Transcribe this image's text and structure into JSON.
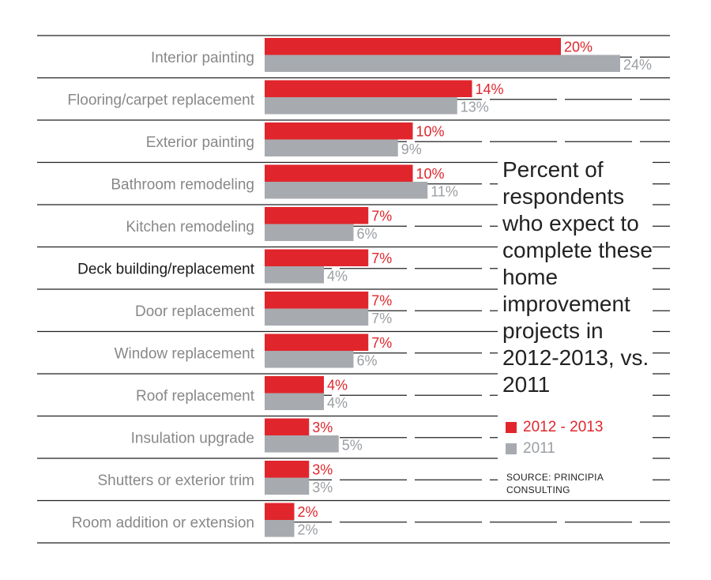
{
  "chart_data": {
    "type": "bar",
    "orientation": "horizontal",
    "title": "Percent of respondents who expect to complete these home improvement projects in 2012-2013, vs. 2011",
    "categories": [
      "Interior painting",
      "Flooring/carpet replacement",
      "Exterior painting",
      "Bathroom remodeling",
      "Kitchen remodeling",
      "Deck building/replacement",
      "Door replacement",
      "Window replacement",
      "Roof replacement",
      "Insulation upgrade",
      "Shutters or exterior trim",
      "Room addition or extension"
    ],
    "highlighted_category": "Deck building/replacement",
    "series": [
      {
        "name": "2012 - 2013",
        "color": "#e0262c",
        "values": [
          20,
          14,
          10,
          10,
          7,
          7,
          7,
          7,
          4,
          3,
          3,
          2
        ],
        "labels": [
          "20%",
          "14%",
          "10%",
          "10%",
          "7%",
          "7%",
          "7%",
          "7%",
          "4%",
          "3%",
          "3%",
          "2%"
        ]
      },
      {
        "name": "2011",
        "color": "#a7aaaf",
        "values": [
          24,
          13,
          9,
          11,
          6,
          4,
          7,
          6,
          4,
          5,
          3,
          2
        ],
        "labels": [
          "24%",
          "13%",
          "9%",
          "11%",
          "6%",
          "4%",
          "7%",
          "6%",
          "4%",
          "5%",
          "3%",
          "2%"
        ]
      }
    ],
    "xlim": [
      0,
      24
    ],
    "grid": true,
    "legend_position": "right",
    "source": "SOURCE: PRINCIPIA CONSULTING"
  }
}
